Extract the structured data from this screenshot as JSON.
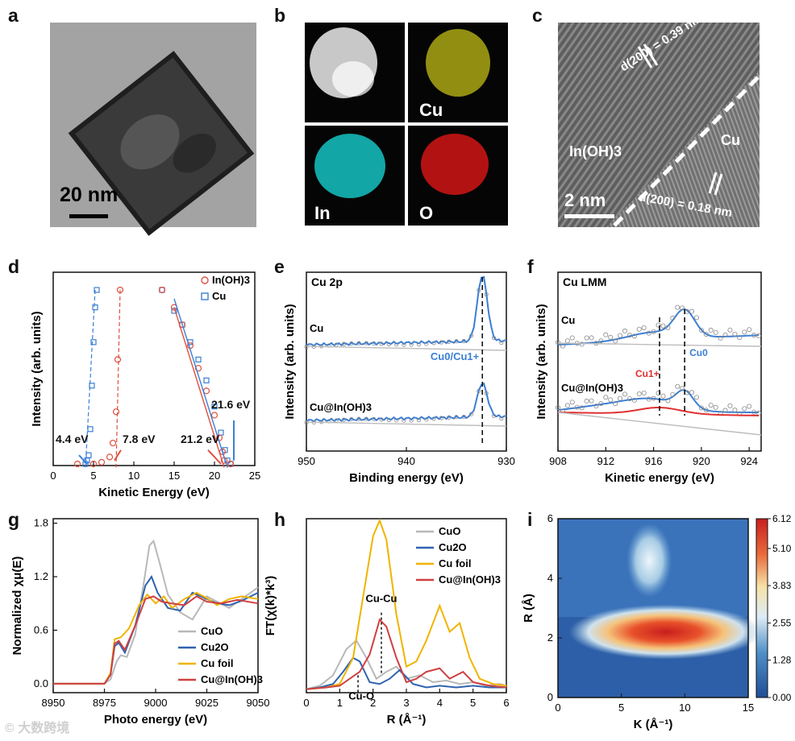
{
  "panels": {
    "a": {
      "label": "a",
      "scale": "20 nm"
    },
    "b": {
      "label": "b",
      "maps": [
        "",
        "Cu",
        "In",
        "O"
      ],
      "colors": [
        "#ffffff",
        "#d8d21a",
        "#18d6d6",
        "#e01818"
      ]
    },
    "c": {
      "label": "c",
      "d1": "d(200) = 0.39 nm",
      "d2": "d(200) = 0.18 nm",
      "phase1": "In(OH)3",
      "phase2": "Cu",
      "scale": "2 nm"
    },
    "d": {
      "label": "d"
    },
    "e": {
      "label": "e"
    },
    "f": {
      "label": "f"
    },
    "g": {
      "label": "g"
    },
    "h": {
      "label": "h"
    },
    "i": {
      "label": "i"
    }
  },
  "chart_data": [
    {
      "id": "d",
      "type": "scatter",
      "xlabel": "Kinetic Energy (eV)",
      "ylabel": "Intensity (arb. units)",
      "xlim": [
        0,
        25
      ],
      "xticks": [
        0,
        5,
        10,
        15,
        20,
        25
      ],
      "legend": [
        {
          "name": "In(OH)3",
          "color": "#e05040",
          "marker": "circle"
        },
        {
          "name": "Cu",
          "color": "#3a7fd5",
          "marker": "square"
        }
      ],
      "annotations": [
        "4.4 eV",
        "7.8 eV",
        "21.2 eV",
        "21.6 eV"
      ],
      "series": [
        {
          "name": "Cu",
          "color": "#3a7fd5",
          "x": [
            4.0,
            4.2,
            4.4,
            4.6,
            4.8,
            5.0,
            5.2,
            5.4,
            13.5,
            15,
            16,
            17,
            18,
            19,
            20,
            20.8,
            21.3,
            21.6,
            22
          ],
          "y": [
            0.0,
            0.02,
            0.05,
            0.2,
            0.45,
            0.7,
            0.9,
            1.0,
            1.0,
            0.88,
            0.8,
            0.7,
            0.6,
            0.48,
            0.33,
            0.18,
            0.08,
            0.02,
            0.0
          ]
        },
        {
          "name": "In(OH)3",
          "color": "#e05040",
          "x": [
            3,
            5,
            6,
            7,
            7.4,
            7.8,
            8.0,
            8.3,
            13.5,
            15,
            16,
            17,
            18,
            19,
            20,
            20.6,
            21.0,
            21.2,
            22
          ],
          "y": [
            0.0,
            0.0,
            0.01,
            0.04,
            0.12,
            0.3,
            0.6,
            1.0,
            1.0,
            0.9,
            0.8,
            0.68,
            0.55,
            0.42,
            0.28,
            0.15,
            0.07,
            0.02,
            0.0
          ]
        }
      ]
    },
    {
      "id": "e",
      "type": "line",
      "title": "Cu 2p",
      "xlabel": "Binding energy (eV)",
      "ylabel": "Intensity (arb. units)",
      "xlim": [
        950,
        930
      ],
      "xticks": [
        950,
        940,
        930
      ],
      "labels": [
        "Cu",
        "Cu@In(OH)3",
        "Cu0/Cu1+"
      ],
      "peak": 932.4,
      "series": [
        {
          "name": "Cu",
          "color": "#3a7fd5"
        },
        {
          "name": "Cu@In(OH)3",
          "color": "#3a7fd5"
        }
      ]
    },
    {
      "id": "f",
      "type": "line",
      "title": "Cu LMM",
      "xlabel": "Kinetic energy (eV)",
      "ylabel": "Intensity (arb. units)",
      "xlim": [
        908,
        925
      ],
      "xticks": [
        908,
        912,
        916,
        920,
        924
      ],
      "labels": [
        "Cu",
        "Cu@In(OH)3",
        "Cu1+",
        "Cu0"
      ],
      "peaks": {
        "Cu1+": 916.5,
        "Cu0": 918.6
      }
    },
    {
      "id": "g",
      "type": "line",
      "xlabel": "Photo energy (eV)",
      "ylabel": "Normalized χμ(E)",
      "xlim": [
        8950,
        9050
      ],
      "ylim": [
        -0.1,
        1.85
      ],
      "xticks": [
        8950,
        8975,
        9000,
        9025,
        9050
      ],
      "yticks": [
        0.0,
        0.6,
        1.2,
        1.8
      ],
      "series": [
        {
          "name": "CuO",
          "color": "#b8b8b8",
          "x": [
            8950,
            8975,
            8978,
            8981,
            8983,
            8986,
            8990,
            8994,
            8997,
            8999,
            9002,
            9006,
            9012,
            9018,
            9025,
            9030,
            9036,
            9042,
            9050
          ],
          "y": [
            0.0,
            0.0,
            0.05,
            0.25,
            0.32,
            0.3,
            0.55,
            1.1,
            1.55,
            1.6,
            1.35,
            1.0,
            0.8,
            0.72,
            0.98,
            0.92,
            0.85,
            0.95,
            1.08
          ]
        },
        {
          "name": "Cu2O",
          "color": "#2e63b0",
          "x": [
            8950,
            8975,
            8978,
            8980,
            8982,
            8985,
            8990,
            8995,
            8998,
            9001,
            9006,
            9012,
            9018,
            9025,
            9030,
            9036,
            9042,
            9050
          ],
          "y": [
            0.0,
            0.0,
            0.1,
            0.42,
            0.46,
            0.35,
            0.65,
            1.1,
            1.2,
            1.02,
            0.85,
            0.82,
            1.02,
            0.95,
            0.9,
            0.88,
            0.93,
            1.02
          ]
        },
        {
          "name": "Cu foil",
          "color": "#f0b400",
          "x": [
            8950,
            8975,
            8978,
            8980,
            8983,
            8987,
            8992,
            8996,
            9000,
            9004,
            9008,
            9014,
            9020,
            9025,
            9030,
            9036,
            9042,
            9050
          ],
          "y": [
            0.0,
            0.0,
            0.12,
            0.5,
            0.52,
            0.62,
            0.88,
            1.0,
            0.9,
            0.98,
            0.85,
            0.95,
            1.02,
            0.96,
            0.88,
            0.95,
            0.98,
            0.95
          ]
        },
        {
          "name": "Cu@In(OH)3",
          "color": "#d04040",
          "x": [
            8950,
            8975,
            8978,
            8980,
            8982,
            8985,
            8990,
            8995,
            8999,
            9003,
            9008,
            9014,
            9020,
            9025,
            9032,
            9040,
            9050
          ],
          "y": [
            0.0,
            0.0,
            0.1,
            0.45,
            0.48,
            0.38,
            0.65,
            0.95,
            0.98,
            0.92,
            0.9,
            0.88,
            0.98,
            0.92,
            0.9,
            0.94,
            0.9
          ]
        }
      ]
    },
    {
      "id": "h",
      "type": "line",
      "xlabel": "R (Å⁻¹)",
      "ylabel": "FT(χ(k)*k³)",
      "xlim": [
        0,
        6
      ],
      "ylim": [
        0,
        1.0
      ],
      "xticks": [
        0,
        1,
        2,
        3,
        4,
        5,
        6
      ],
      "annotations": [
        "Cu-Cu",
        "Cu-O"
      ],
      "series": [
        {
          "name": "CuO",
          "color": "#b8b8b8",
          "x": [
            0,
            0.4,
            0.8,
            1.2,
            1.5,
            1.8,
            2.1,
            2.4,
            2.7,
            3.0,
            3.4,
            3.8,
            4.2,
            4.6,
            5.0,
            5.4,
            5.8,
            6.0
          ],
          "y": [
            0.02,
            0.04,
            0.1,
            0.25,
            0.3,
            0.2,
            0.08,
            0.12,
            0.15,
            0.08,
            0.1,
            0.06,
            0.07,
            0.05,
            0.06,
            0.04,
            0.05,
            0.04
          ]
        },
        {
          "name": "Cu2O",
          "color": "#2e63b0",
          "x": [
            0,
            0.4,
            0.8,
            1.1,
            1.4,
            1.6,
            1.9,
            2.2,
            2.5,
            2.8,
            3.2,
            3.6,
            4.0,
            4.5,
            5.0,
            5.5,
            6.0
          ],
          "y": [
            0.02,
            0.03,
            0.05,
            0.12,
            0.2,
            0.18,
            0.06,
            0.05,
            0.08,
            0.13,
            0.05,
            0.03,
            0.04,
            0.03,
            0.04,
            0.03,
            0.03
          ]
        },
        {
          "name": "Cu foil",
          "color": "#f0b400",
          "x": [
            0,
            0.6,
            1.0,
            1.4,
            1.7,
            2.0,
            2.2,
            2.4,
            2.7,
            3.0,
            3.3,
            3.6,
            4.0,
            4.3,
            4.6,
            4.9,
            5.2,
            5.6,
            6.0
          ],
          "y": [
            0.02,
            0.03,
            0.05,
            0.2,
            0.55,
            0.9,
            0.99,
            0.88,
            0.45,
            0.15,
            0.18,
            0.3,
            0.5,
            0.35,
            0.4,
            0.2,
            0.08,
            0.05,
            0.04
          ]
        },
        {
          "name": "Cu@In(OH)3",
          "color": "#d04040",
          "x": [
            0,
            0.6,
            1.0,
            1.3,
            1.6,
            1.9,
            2.2,
            2.4,
            2.7,
            3.0,
            3.3,
            3.6,
            4.0,
            4.3,
            4.7,
            5.0,
            5.5,
            6.0
          ],
          "y": [
            0.02,
            0.03,
            0.04,
            0.08,
            0.12,
            0.22,
            0.42,
            0.38,
            0.2,
            0.06,
            0.08,
            0.12,
            0.14,
            0.08,
            0.12,
            0.06,
            0.04,
            0.03
          ]
        }
      ]
    },
    {
      "id": "i",
      "type": "heatmap",
      "xlabel": "K (Å⁻¹)",
      "ylabel": "R (Å)",
      "xlim": [
        0,
        15
      ],
      "ylim": [
        0,
        6
      ],
      "xticks": [
        0,
        5,
        10,
        15
      ],
      "yticks": [
        0,
        2,
        4,
        6
      ],
      "colorbar": [
        0.0,
        1.28,
        2.55,
        3.83,
        5.1,
        6.12
      ],
      "maximum": {
        "k": 8.5,
        "r": 2.2,
        "value": 6.12
      }
    }
  ]
}
